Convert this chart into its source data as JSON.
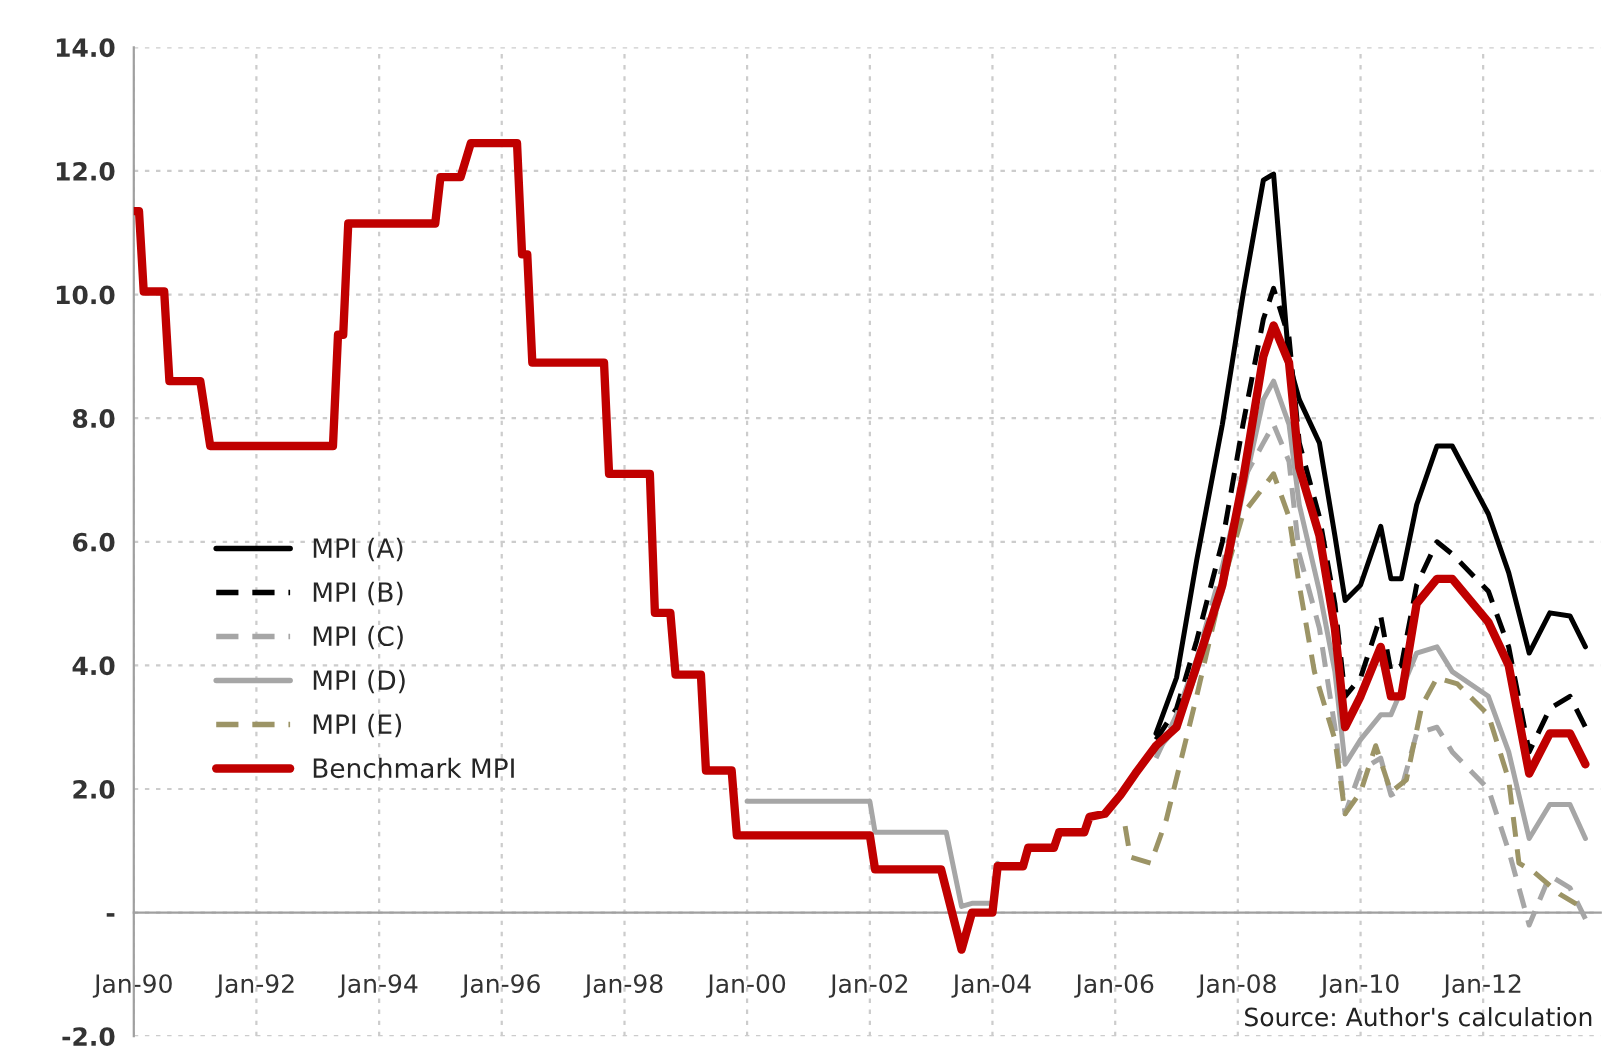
{
  "chart_data": {
    "type": "line",
    "xlim": [
      "1990-01",
      "2013-12"
    ],
    "ylim": [
      -2,
      14
    ],
    "xticks": [
      {
        "value": "1990-01",
        "label": "Jan-90"
      },
      {
        "value": "1992-01",
        "label": "Jan-92"
      },
      {
        "value": "1994-01",
        "label": "Jan-94"
      },
      {
        "value": "1996-01",
        "label": "Jan-96"
      },
      {
        "value": "1998-01",
        "label": "Jan-98"
      },
      {
        "value": "2000-01",
        "label": "Jan-00"
      },
      {
        "value": "2002-01",
        "label": "Jan-02"
      },
      {
        "value": "2004-01",
        "label": "Jan-04"
      },
      {
        "value": "2006-01",
        "label": "Jan-06"
      },
      {
        "value": "2008-01",
        "label": "Jan-08"
      },
      {
        "value": "2010-01",
        "label": "Jan-10"
      },
      {
        "value": "2012-01",
        "label": "Jan-12"
      }
    ],
    "yticks": [
      {
        "value": -2,
        "label": "-2.0"
      },
      {
        "value": 0,
        "label": "-"
      },
      {
        "value": 2,
        "label": "2.0"
      },
      {
        "value": 4,
        "label": "4.0"
      },
      {
        "value": 6,
        "label": "6.0"
      },
      {
        "value": 8,
        "label": "8.0"
      },
      {
        "value": 10,
        "label": "10.0"
      },
      {
        "value": 12,
        "label": "12.0"
      },
      {
        "value": 14,
        "label": "14.0"
      }
    ],
    "grid": true,
    "legend": "left",
    "annotations": [
      "Source: Author's calculation"
    ],
    "series": [
      {
        "name": "MPI (A)",
        "color": "#000000",
        "line_style": "solid",
        "x": [
          "2006-09",
          "2007-01",
          "2007-05",
          "2007-10",
          "2008-02",
          "2008-06",
          "2008-08",
          "2008-11",
          "2009-01",
          "2009-05",
          "2009-08",
          "2009-10",
          "2010-01",
          "2010-05",
          "2010-07",
          "2010-09",
          "2010-12",
          "2011-04",
          "2011-07",
          "2012-02",
          "2012-06",
          "2012-10",
          "2013-02",
          "2013-06",
          "2013-09"
        ],
        "values": [
          2.9,
          3.8,
          5.7,
          7.9,
          10.0,
          11.85,
          11.95,
          8.9,
          8.3,
          7.6,
          6.1,
          5.05,
          5.3,
          6.25,
          5.4,
          5.4,
          6.6,
          7.55,
          7.55,
          6.45,
          5.5,
          4.2,
          4.85,
          4.8,
          4.3
        ]
      },
      {
        "name": "MPI (B)",
        "color": "#000000",
        "line_style": "dashed",
        "x": [
          "2006-09",
          "2007-01",
          "2007-05",
          "2007-10",
          "2008-02",
          "2008-06",
          "2008-08",
          "2008-11",
          "2009-01",
          "2009-05",
          "2009-08",
          "2009-10",
          "2010-01",
          "2010-05",
          "2010-07",
          "2010-09",
          "2010-12",
          "2011-04",
          "2011-07",
          "2012-02",
          "2012-06",
          "2012-10",
          "2013-02",
          "2013-06",
          "2013-09"
        ],
        "values": [
          2.8,
          3.3,
          4.4,
          6.0,
          7.9,
          9.6,
          10.1,
          9.3,
          7.6,
          6.4,
          5.0,
          3.5,
          3.8,
          4.8,
          3.9,
          4.0,
          5.3,
          6.0,
          5.8,
          5.2,
          4.3,
          2.6,
          3.3,
          3.5,
          3.0
        ]
      },
      {
        "name": "MPI (C)",
        "color": "#a6a6a6",
        "line_style": "dashed",
        "x": [
          "2006-09",
          "2007-01",
          "2007-05",
          "2007-10",
          "2008-02",
          "2008-06",
          "2008-08",
          "2008-11",
          "2009-01",
          "2009-05",
          "2009-08",
          "2009-10",
          "2010-01",
          "2010-05",
          "2010-07",
          "2010-09",
          "2010-12",
          "2011-04",
          "2011-07",
          "2012-02",
          "2012-06",
          "2012-10",
          "2013-02",
          "2013-06",
          "2013-09"
        ],
        "values": [
          2.5,
          3.2,
          4.1,
          5.6,
          7.0,
          7.6,
          7.9,
          7.3,
          5.8,
          4.6,
          3.0,
          1.6,
          2.3,
          2.5,
          1.9,
          2.0,
          2.9,
          3.0,
          2.6,
          2.0,
          1.0,
          -0.2,
          0.6,
          0.4,
          -0.1
        ]
      },
      {
        "name": "MPI (D)",
        "color": "#a6a6a6",
        "line_style": "solid",
        "x": [
          "2000-01",
          "2002-01",
          "2002-02",
          "2003-04",
          "2003-07",
          "2003-09",
          "2004-01",
          "2004-02",
          "2004-07",
          "2004-08",
          "2005-01",
          "2005-02",
          "2005-07",
          "2005-08",
          "2005-11",
          "2006-02",
          "2006-05",
          "2006-09",
          "2007-01",
          "2007-05",
          "2007-10",
          "2008-02",
          "2008-06",
          "2008-08",
          "2008-11",
          "2009-01",
          "2009-05",
          "2009-08",
          "2009-10",
          "2010-01",
          "2010-05",
          "2010-07",
          "2010-09",
          "2010-12",
          "2011-04",
          "2011-07",
          "2012-02",
          "2012-06",
          "2012-10",
          "2013-02",
          "2013-06",
          "2013-09"
        ],
        "values": [
          1.8,
          1.8,
          1.3,
          1.3,
          0.1,
          0.15,
          0.15,
          0.8,
          null,
          null,
          null,
          null,
          null,
          null,
          null,
          null,
          null,
          2.6,
          3.0,
          3.9,
          5.2,
          6.8,
          8.3,
          8.6,
          7.9,
          6.6,
          5.2,
          3.9,
          2.4,
          2.8,
          3.2,
          3.2,
          3.6,
          4.2,
          4.3,
          3.9,
          3.5,
          2.6,
          1.2,
          1.75,
          1.75,
          1.2
        ]
      },
      {
        "name": "MPI (E)",
        "color": "#9c9466",
        "line_style": "dashed",
        "x": [
          "2006-03",
          "2006-04",
          "2006-08",
          "2006-11",
          "2007-05",
          "2007-10",
          "2008-02",
          "2008-08",
          "2008-11",
          "2009-01",
          "2009-04",
          "2009-08",
          "2009-10",
          "2010-01",
          "2010-04",
          "2010-07",
          "2010-10",
          "2011-01",
          "2011-04",
          "2011-08",
          "2012-02",
          "2012-06",
          "2012-08",
          "2012-11",
          "2013-04",
          "2013-08"
        ],
        "values": [
          1.4,
          0.9,
          0.8,
          1.5,
          3.5,
          5.3,
          6.45,
          7.1,
          6.4,
          5.3,
          3.9,
          2.8,
          1.6,
          1.95,
          2.7,
          1.95,
          2.15,
          3.35,
          3.8,
          3.7,
          3.2,
          2.15,
          0.8,
          0.65,
          0.3,
          0.1
        ]
      },
      {
        "name": "Benchmark MPI",
        "color": "#c00000",
        "line_style": "solid",
        "x": [
          "1990-01",
          "1990-02",
          "1990-03",
          "1990-07",
          "1990-08",
          "1991-02",
          "1991-04",
          "1993-04",
          "1993-05",
          "1993-06",
          "1993-07",
          "1994-12",
          "1995-01",
          "1995-05",
          "1995-07",
          "1996-04",
          "1996-05",
          "1996-06",
          "1996-07",
          "1997-09",
          "1997-10",
          "1998-06",
          "1998-07",
          "1998-10",
          "1998-11",
          "1999-04",
          "1999-05",
          "1999-10",
          "1999-11",
          "2002-01",
          "2002-02",
          "2003-03",
          "2003-07",
          "2003-09",
          "2004-01",
          "2004-02",
          "2004-07",
          "2004-08",
          "2005-01",
          "2005-02",
          "2005-07",
          "2005-08",
          "2005-11",
          "2006-02",
          "2006-05",
          "2006-09",
          "2007-01",
          "2007-05",
          "2007-10",
          "2008-02",
          "2008-06",
          "2008-08",
          "2008-11",
          "2009-01",
          "2009-05",
          "2009-08",
          "2009-10",
          "2010-01",
          "2010-05",
          "2010-07",
          "2010-09",
          "2010-12",
          "2011-04",
          "2011-07",
          "2012-02",
          "2012-06",
          "2012-10",
          "2013-02",
          "2013-06",
          "2013-09"
        ],
        "values": [
          11.35,
          11.35,
          10.05,
          10.05,
          8.6,
          8.6,
          7.55,
          7.55,
          9.35,
          9.35,
          11.15,
          11.15,
          11.9,
          11.9,
          12.45,
          12.45,
          10.65,
          10.65,
          8.9,
          8.9,
          7.1,
          7.1,
          4.85,
          4.85,
          3.85,
          3.85,
          2.3,
          2.3,
          1.25,
          1.25,
          0.7,
          0.7,
          -0.6,
          0.0,
          0.0,
          0.75,
          0.75,
          1.05,
          1.05,
          1.3,
          1.3,
          1.55,
          1.6,
          1.9,
          2.25,
          2.7,
          3.0,
          4.0,
          5.3,
          7.0,
          9.0,
          9.5,
          8.9,
          7.2,
          6.1,
          4.6,
          3.0,
          3.5,
          4.3,
          3.5,
          3.5,
          5.0,
          5.4,
          5.4,
          4.7,
          4.0,
          2.25,
          2.9,
          2.9,
          2.4
        ]
      }
    ]
  }
}
